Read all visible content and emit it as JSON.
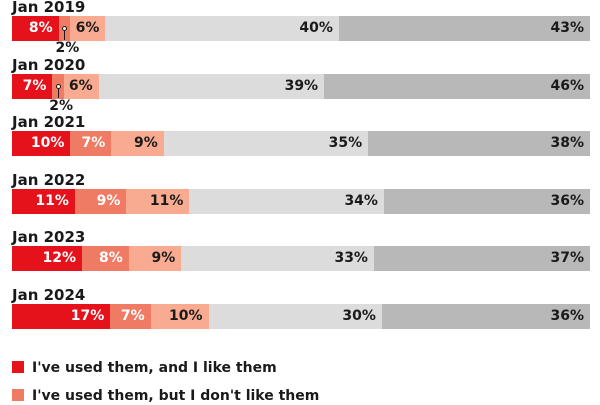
{
  "chart_data": {
    "type": "bar",
    "orientation": "horizontal",
    "stacked": true,
    "percent_stacked": true,
    "categories": [
      "Jan 2019",
      "Jan 2020",
      "Jan 2021",
      "Jan 2022",
      "Jan 2023",
      "Jan 2024"
    ],
    "series": [
      {
        "name": "I've used them, and I like them",
        "color": "#e5121c",
        "values": [
          8,
          7,
          10,
          11,
          12,
          17
        ]
      },
      {
        "name": "I've used them, but I don't like them",
        "color": "#f07b64",
        "values": [
          2,
          2,
          7,
          9,
          8,
          7
        ]
      },
      {
        "name": "",
        "color": "#f8ab90",
        "values": [
          6,
          6,
          9,
          11,
          9,
          10
        ]
      },
      {
        "name": "",
        "color": "#dcdcdc",
        "values": [
          40,
          39,
          35,
          34,
          33,
          30
        ]
      },
      {
        "name": "",
        "color": "#b8b8b8",
        "values": [
          43,
          46,
          38,
          36,
          37,
          36
        ]
      }
    ],
    "labels": [
      [
        "8%",
        "2%",
        "6%",
        "40%",
        "43%"
      ],
      [
        "7%",
        "2%",
        "6%",
        "39%",
        "46%"
      ],
      [
        "10%",
        "7%",
        "9%",
        "35%",
        "38%"
      ],
      [
        "11%",
        "9%",
        "11%",
        "34%",
        "36%"
      ],
      [
        "12%",
        "8%",
        "9%",
        "33%",
        "37%"
      ],
      [
        "17%",
        "7%",
        "10%",
        "30%",
        "36%"
      ]
    ],
    "callouts": [
      {
        "category": "Jan 2019",
        "series_index": 1,
        "label": "2%"
      },
      {
        "category": "Jan 2020",
        "series_index": 1,
        "label": "2%"
      }
    ],
    "title": "",
    "xlabel": "",
    "ylabel": "",
    "xlim": [
      0,
      100
    ],
    "grid": false,
    "legend_position": "bottom-left"
  }
}
